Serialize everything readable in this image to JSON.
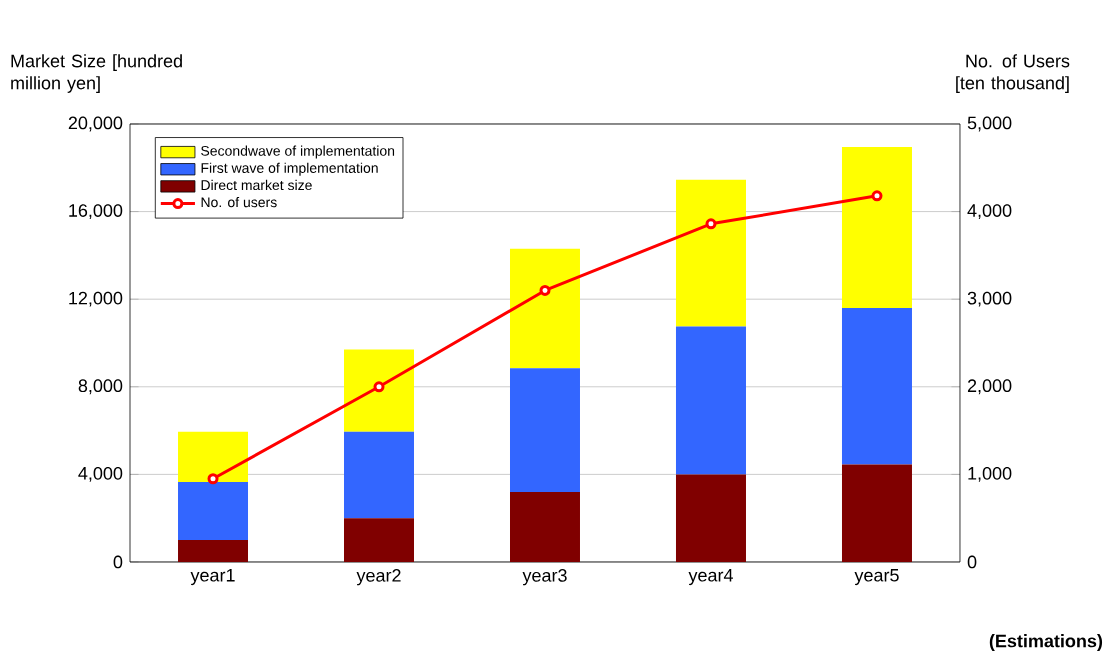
{
  "chart_data": {
    "type": "bar",
    "stacked": true,
    "ylabel": "Market Size [hundred million yen]",
    "y2label": "No. of Users [ten thousand]",
    "categories": [
      "year1",
      "year2",
      "year3",
      "year4",
      "year5"
    ],
    "series": [
      {
        "name": "Direct market size",
        "color": "#800000",
        "values": [
          1000,
          2000,
          3200,
          4000,
          4450
        ]
      },
      {
        "name": "First wave of implementation",
        "color": "#3366ff",
        "values": [
          2650,
          3950,
          5650,
          6750,
          7150
        ]
      },
      {
        "name": "Secondwave of implementation",
        "color": "#ffff00",
        "values": [
          2300,
          3750,
          5450,
          6700,
          7350
        ]
      },
      {
        "name": "No. of users",
        "type": "line",
        "axis": "y2",
        "color": "#ff0000",
        "marker": "circle",
        "values": [
          950,
          2000,
          3100,
          3860,
          4180
        ]
      }
    ],
    "ylim": [
      0,
      20000
    ],
    "yticks": [
      {
        "value": 0,
        "label": "0"
      },
      {
        "value": 4000,
        "label": "4,000"
      },
      {
        "value": 8000,
        "label": "8,000"
      },
      {
        "value": 12000,
        "label": "12,000"
      },
      {
        "value": 16000,
        "label": "16,000"
      },
      {
        "value": 20000,
        "label": "20,000"
      }
    ],
    "y2lim": [
      0,
      5000
    ],
    "y2ticks": [
      {
        "value": 0,
        "label": "0"
      },
      {
        "value": 1000,
        "label": "1,000"
      },
      {
        "value": 2000,
        "label": "2,000"
      },
      {
        "value": 3000,
        "label": "3,000"
      },
      {
        "value": 4000,
        "label": "4,000"
      },
      {
        "value": 5000,
        "label": "5,000"
      }
    ],
    "grid": "y",
    "legend": "top left",
    "annotations": [
      "(Estimations)"
    ]
  }
}
